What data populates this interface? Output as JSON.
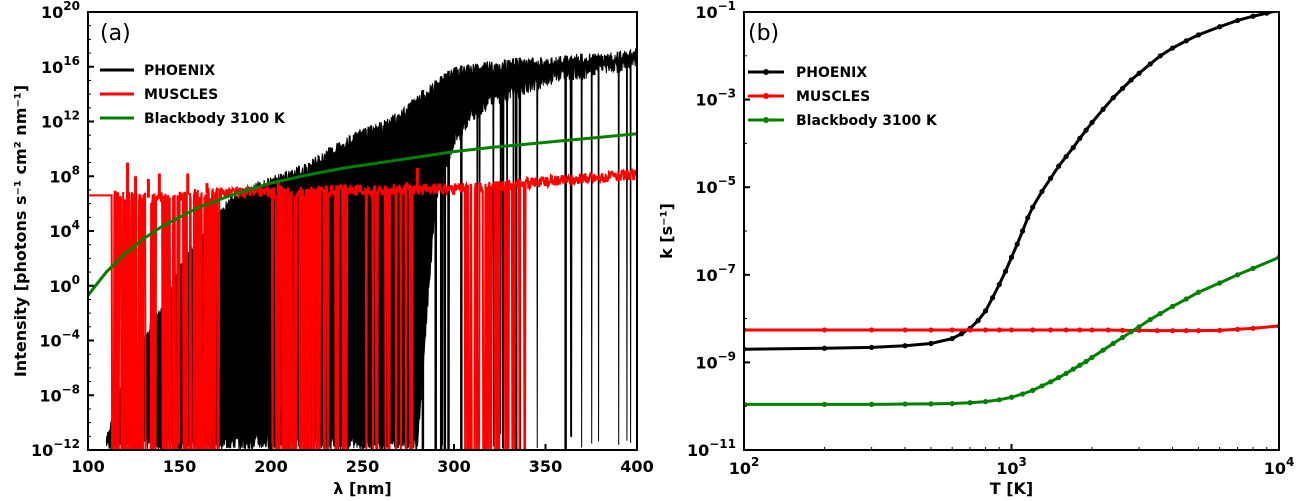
{
  "chart_data": [
    {
      "type": "line",
      "panel_label": "(a)",
      "xlabel": "λ [nm]",
      "ylabel": "Intensity [photons s⁻¹ cm² nm⁻¹]",
      "xscale": "linear",
      "yscale": "log",
      "xlim": [
        100,
        400
      ],
      "ylim": [
        1e-12,
        1e+20
      ],
      "xticks": [
        100,
        150,
        200,
        250,
        300,
        350,
        400
      ],
      "xtick_labels": [
        "100",
        "150",
        "200",
        "250",
        "300",
        "350",
        "400"
      ],
      "yticks": [
        1e-12,
        1e-08,
        0.0001,
        1,
        10000.0,
        100000000.0,
        1000000000000.0,
        1e+16,
        1e+20
      ],
      "ytick_labels": [
        {
          "base": "10",
          "exp": "−12"
        },
        {
          "base": "10",
          "exp": "−8"
        },
        {
          "base": "10",
          "exp": "−4"
        },
        {
          "base": "10",
          "exp": "0"
        },
        {
          "base": "10",
          "exp": "4"
        },
        {
          "base": "10",
          "exp": "8"
        },
        {
          "base": "10",
          "exp": "12"
        },
        {
          "base": "10",
          "exp": "16"
        },
        {
          "base": "10",
          "exp": "20"
        }
      ],
      "legend_position": "upper-left",
      "grid": false,
      "series": [
        {
          "name": "PHOENIX",
          "color": "#000000",
          "style": "line",
          "x": [
            110,
            120,
            130,
            140,
            150,
            160,
            170,
            180,
            190,
            200,
            210,
            220,
            230,
            240,
            250,
            260,
            270,
            280,
            290,
            300,
            310,
            320,
            330,
            340,
            350,
            360,
            370,
            380,
            390,
            400
          ],
          "y_upper_log10": [
            -11,
            -6,
            -3.5,
            -1.5,
            1.5,
            3.5,
            5.5,
            6.8,
            7.5,
            8,
            8.5,
            9,
            10,
            10.8,
            11.5,
            12,
            12.8,
            14,
            15,
            16,
            16.2,
            16.4,
            16.6,
            16.7,
            16.8,
            16.8,
            17,
            17,
            17.2,
            17.4
          ],
          "y_lower_log10": [
            -12,
            -12,
            -12,
            -12,
            -12,
            -12,
            -12,
            -12,
            -12,
            -12,
            -12,
            -12,
            -12,
            -12,
            -12,
            -12,
            -12,
            -12,
            6,
            10,
            12,
            13,
            13.5,
            14,
            14.5,
            15,
            15,
            15.5,
            15.5,
            16
          ]
        },
        {
          "name": "MUSCLES",
          "color": "#ff0000",
          "style": "line",
          "x": [
            100,
            113,
            120,
            130,
            140,
            150,
            160,
            170,
            180,
            190,
            200,
            220,
            240,
            260,
            280,
            300,
            320,
            340,
            360,
            380,
            400
          ],
          "y_log10": [
            6.6,
            6.6,
            6.5,
            6.4,
            6.5,
            6.6,
            6.7,
            6.8,
            6.8,
            6.85,
            6.9,
            6.9,
            6.95,
            7,
            7.05,
            7.1,
            7.2,
            7.5,
            7.7,
            7.9,
            8.1
          ],
          "spikes": [
            {
              "x": 121.6,
              "y_log10": 9
            },
            {
              "x": 126,
              "y_log10": 8
            },
            {
              "x": 133,
              "y_log10": 7.8
            },
            {
              "x": 139,
              "y_log10": 8.2
            },
            {
              "x": 154.5,
              "y_log10": 8.2
            },
            {
              "x": 165,
              "y_log10": 7.5
            },
            {
              "x": 204,
              "y_log10": 7.6
            },
            {
              "x": 280,
              "y_log10": 8.6
            }
          ]
        },
        {
          "name": "Blackbody 3100 K",
          "color": "#008000",
          "style": "line",
          "x": [
            100,
            110,
            120,
            130,
            140,
            150,
            160,
            170,
            180,
            190,
            200,
            220,
            240,
            260,
            280,
            300,
            320,
            340,
            360,
            380,
            400
          ],
          "y_log10": [
            -0.7,
            1.0,
            2.3,
            3.4,
            4.3,
            5.0,
            5.7,
            6.2,
            6.7,
            7.1,
            7.5,
            8.1,
            8.6,
            9.0,
            9.4,
            9.8,
            10.1,
            10.35,
            10.6,
            10.85,
            11.1
          ]
        }
      ]
    },
    {
      "type": "line",
      "panel_label": "(b)",
      "xlabel": "T [K]",
      "ylabel": "k [s⁻¹]",
      "xscale": "log",
      "yscale": "log",
      "xlim": [
        100,
        10000
      ],
      "ylim": [
        1e-11,
        0.1
      ],
      "xticks": [
        100,
        1000,
        10000
      ],
      "xtick_labels": [
        {
          "base": "10",
          "exp": "2"
        },
        {
          "base": "10",
          "exp": "3"
        },
        {
          "base": "10",
          "exp": "4"
        }
      ],
      "yticks": [
        1e-11,
        1e-09,
        1e-07,
        1e-05,
        0.001,
        0.1
      ],
      "ytick_labels": [
        {
          "base": "10",
          "exp": "−11"
        },
        {
          "base": "10",
          "exp": "−9"
        },
        {
          "base": "10",
          "exp": "−7"
        },
        {
          "base": "10",
          "exp": "−5"
        },
        {
          "base": "10",
          "exp": "−3"
        },
        {
          "base": "10",
          "exp": "−1"
        }
      ],
      "legend_position": "upper-left",
      "grid": false,
      "series": [
        {
          "name": "PHOENIX",
          "color": "#000000",
          "style": "line-with-markers",
          "x": [
            100,
            200,
            300,
            400,
            500,
            600,
            650,
            700,
            750,
            800,
            850,
            900,
            950,
            1000,
            1050,
            1100,
            1150,
            1200,
            1300,
            1400,
            1500,
            1600,
            1700,
            1800,
            1900,
            2000,
            2200,
            2400,
            2600,
            2800,
            3000,
            3300,
            3600,
            4000,
            4500,
            5000,
            6000,
            7000,
            8000,
            9000,
            10000
          ],
          "y": [
            2e-09,
            2.1e-09,
            2.2e-09,
            2.4e-09,
            2.7e-09,
            3.5e-09,
            4.5e-09,
            6e-09,
            9e-09,
            1.5e-08,
            3e-08,
            6e-08,
            1.2e-07,
            2.5e-07,
            5e-07,
            1e-06,
            2e-06,
            3.5e-06,
            8e-06,
            1.6e-05,
            3e-05,
            5e-05,
            8e-05,
            0.00013,
            0.0002,
            0.0003,
            0.0006,
            0.0011,
            0.0018,
            0.0028,
            0.004,
            0.0065,
            0.01,
            0.015,
            0.022,
            0.03,
            0.046,
            0.064,
            0.08,
            0.094,
            0.11
          ]
        },
        {
          "name": "MUSCLES",
          "color": "#ff0000",
          "style": "line-with-markers",
          "x": [
            100,
            200,
            300,
            400,
            500,
            600,
            700,
            800,
            900,
            1000,
            1200,
            1400,
            1600,
            1800,
            2000,
            2300,
            2600,
            3000,
            3500,
            4000,
            4500,
            5000,
            6000,
            7000,
            8000,
            10000
          ],
          "y": [
            5.5e-09,
            5.5e-09,
            5.5e-09,
            5.5e-09,
            5.5e-09,
            5.5e-09,
            5.5e-09,
            5.5e-09,
            5.5e-09,
            5.5e-09,
            5.5e-09,
            5.5e-09,
            5.5e-09,
            5.5e-09,
            5.5e-09,
            5.5e-09,
            5.4e-09,
            5.4e-09,
            5.3e-09,
            5.3e-09,
            5.3e-09,
            5.3e-09,
            5.4e-09,
            5.7e-09,
            6e-09,
            6.8e-09
          ]
        },
        {
          "name": "Blackbody 3100 K",
          "color": "#008000",
          "style": "line-with-markers",
          "x": [
            100,
            200,
            300,
            400,
            500,
            600,
            700,
            800,
            900,
            1000,
            1100,
            1200,
            1300,
            1400,
            1500,
            1600,
            1700,
            1800,
            1900,
            2000,
            2200,
            2400,
            2600,
            2800,
            3000,
            3300,
            3600,
            4000,
            4500,
            5000,
            6000,
            7000,
            8000,
            10000
          ],
          "y": [
            1.1e-10,
            1.1e-10,
            1.1e-10,
            1.12e-10,
            1.13e-10,
            1.15e-10,
            1.2e-10,
            1.27e-10,
            1.4e-10,
            1.6e-10,
            1.9e-10,
            2.3e-10,
            2.9e-10,
            3.6e-10,
            4.5e-10,
            5.6e-10,
            7e-10,
            8.6e-10,
            1.05e-09,
            1.3e-09,
            1.9e-09,
            2.7e-09,
            3.7e-09,
            5e-09,
            6.5e-09,
            9.5e-09,
            1.3e-08,
            1.9e-08,
            2.8e-08,
            4e-08,
            6.5e-08,
            1e-07,
            1.4e-07,
            2.5e-07
          ]
        }
      ]
    }
  ]
}
